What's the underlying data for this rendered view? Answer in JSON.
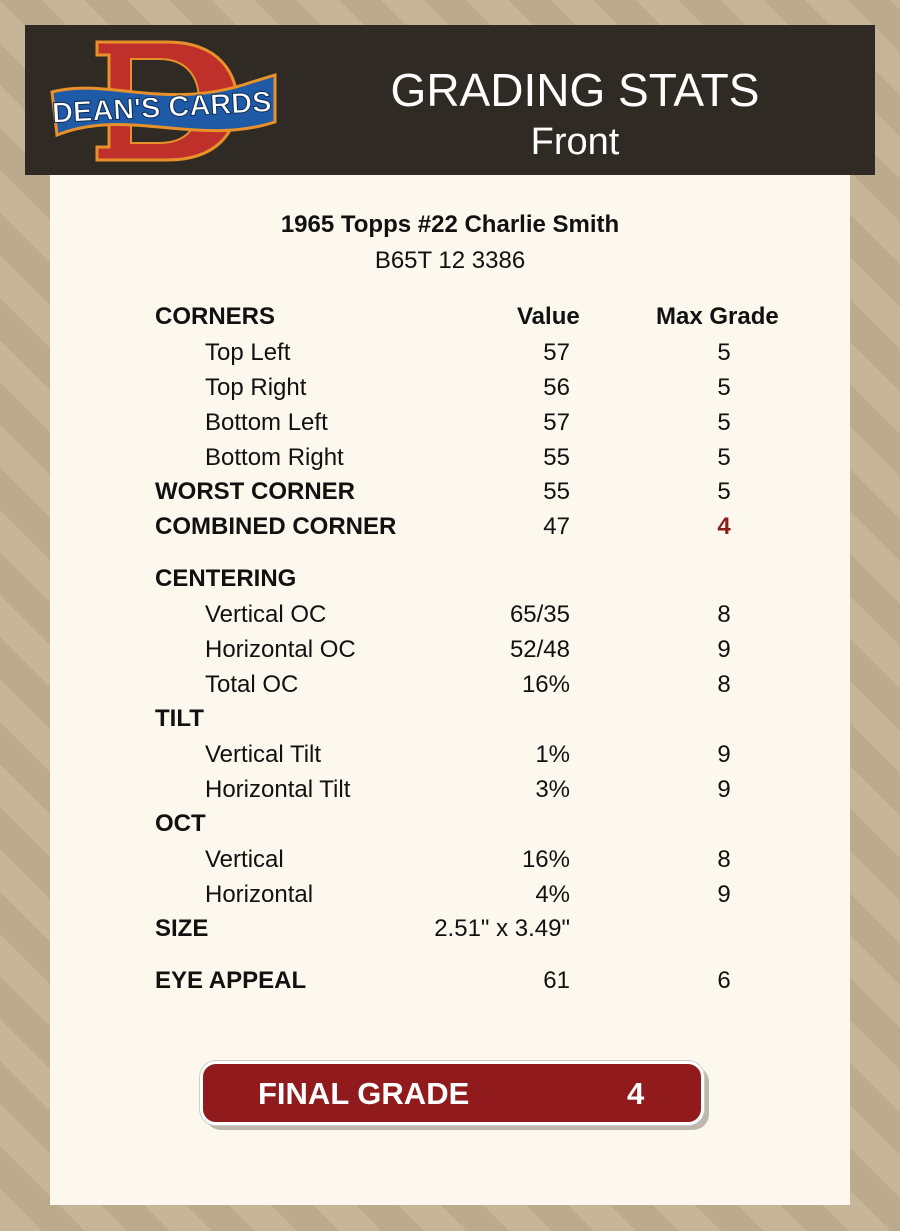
{
  "header": {
    "logo_text": "DEAN'S CARDS",
    "title": "GRADING STATS",
    "subtitle": "Front"
  },
  "card": {
    "name": "1965 Topps #22 Charlie Smith",
    "cert": "B65T 12 3386"
  },
  "columns": {
    "value": "Value",
    "max_grade": "Max Grade"
  },
  "rows": [
    {
      "label": "CORNERS",
      "type": "section-header"
    },
    {
      "label": "Top Left",
      "value": "57",
      "max": "5",
      "type": "sub"
    },
    {
      "label": "Top Right",
      "value": "56",
      "max": "5",
      "type": "sub"
    },
    {
      "label": "Bottom Left",
      "value": "57",
      "max": "5",
      "type": "sub"
    },
    {
      "label": "Bottom Right",
      "value": "55",
      "max": "5",
      "type": "sub"
    },
    {
      "label": "WORST CORNER",
      "value": "55",
      "max": "5",
      "type": "bold"
    },
    {
      "label": "COMBINED CORNER",
      "value": "47",
      "max": "4",
      "type": "bold",
      "highlight": true
    },
    {
      "label": "CENTERING",
      "type": "section"
    },
    {
      "label": "Vertical OC",
      "value": "65/35",
      "max": "8",
      "type": "sub"
    },
    {
      "label": "Horizontal OC",
      "value": "52/48",
      "max": "9",
      "type": "sub"
    },
    {
      "label": "Total OC",
      "value": "16%",
      "max": "8",
      "type": "sub"
    },
    {
      "label": "TILT",
      "type": "section"
    },
    {
      "label": "Vertical Tilt",
      "value": "1%",
      "max": "9",
      "type": "sub"
    },
    {
      "label": "Horizontal Tilt",
      "value": "3%",
      "max": "9",
      "type": "sub"
    },
    {
      "label": "OCT",
      "type": "section"
    },
    {
      "label": "Vertical",
      "value": "16%",
      "max": "8",
      "type": "sub"
    },
    {
      "label": "Horizontal",
      "value": "4%",
      "max": "9",
      "type": "sub"
    },
    {
      "label": "SIZE",
      "value": "2.51\" x 3.49\"",
      "type": "bold"
    },
    {
      "label": "EYE APPEAL",
      "value": "61",
      "max": "6",
      "type": "bold"
    }
  ],
  "final": {
    "label": "FINAL GRADE",
    "value": "4"
  },
  "colors": {
    "header_bg": "#2f2a23",
    "panel_bg": "#fcf8ee",
    "accent_red": "#901a1c"
  }
}
